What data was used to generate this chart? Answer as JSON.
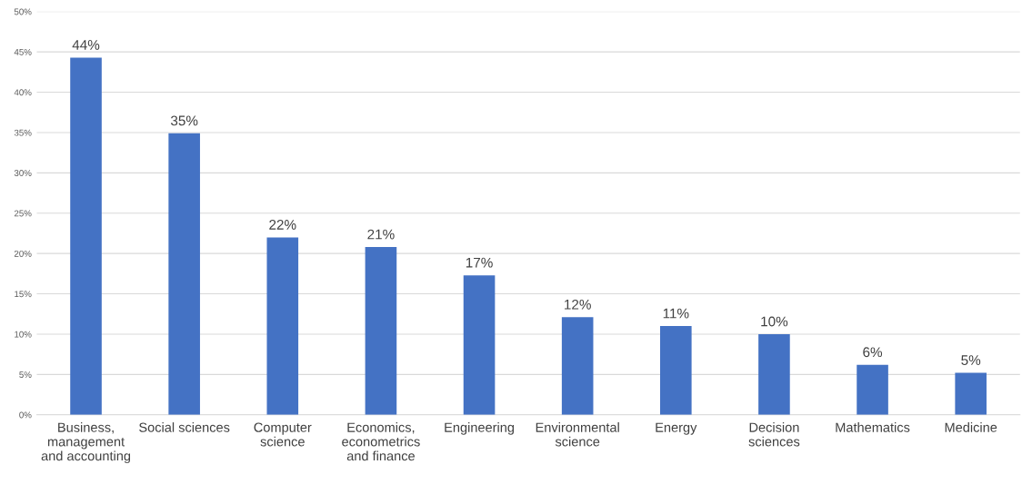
{
  "chart_data": {
    "type": "bar",
    "categories": [
      "Business, management and accounting",
      "Social sciences",
      "Computer science",
      "Economics, econometrics and finance",
      "Engineering",
      "Environmental science",
      "Energy",
      "Decision sciences",
      "Mathematics",
      "Medicine"
    ],
    "values": [
      44.3,
      34.9,
      22.0,
      20.8,
      17.3,
      12.1,
      11.0,
      10.0,
      6.2,
      5.2
    ],
    "value_labels": [
      "44%",
      "35%",
      "22%",
      "21%",
      "17%",
      "12%",
      "11%",
      "10%",
      "6%",
      "5%"
    ],
    "color": "#4472c4",
    "ylim": [
      0,
      50
    ],
    "yticks": [
      {
        "value": 0,
        "label": "0%"
      },
      {
        "value": 5,
        "label": "5%"
      },
      {
        "value": 10,
        "label": "10%"
      },
      {
        "value": 15,
        "label": "15%"
      },
      {
        "value": 20,
        "label": "20%"
      },
      {
        "value": 25,
        "label": "25%"
      },
      {
        "value": 30,
        "label": "30%"
      },
      {
        "value": 35,
        "label": "35%"
      },
      {
        "value": 40,
        "label": "40%"
      },
      {
        "value": 45,
        "label": "45%"
      },
      {
        "value": 50,
        "label": "50%"
      }
    ],
    "grid": "y"
  }
}
